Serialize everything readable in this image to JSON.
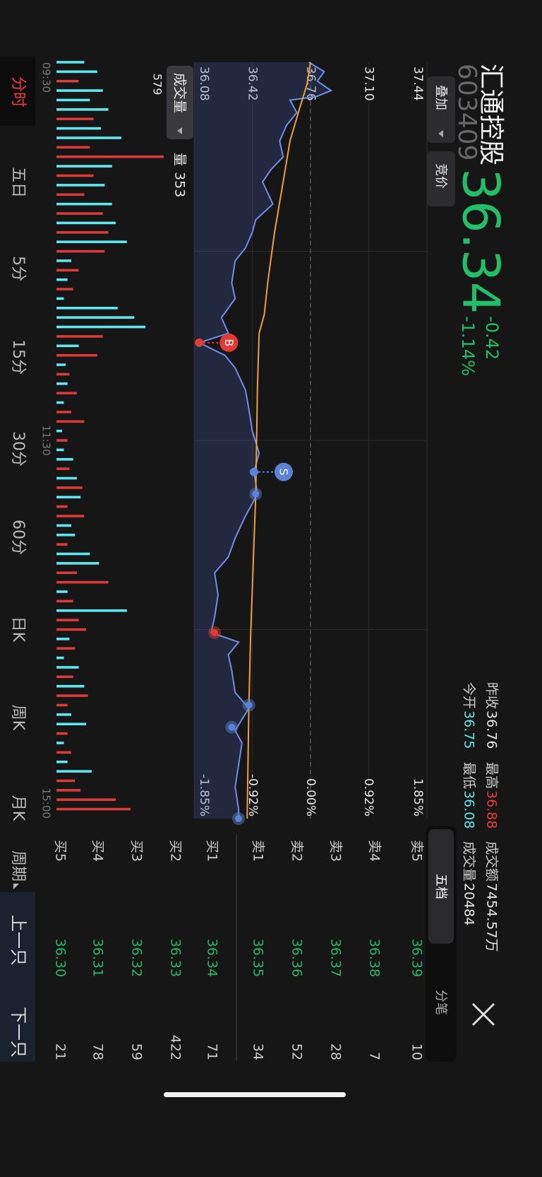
{
  "header": {
    "name": "汇通控股",
    "code": "603409",
    "price": 36.34,
    "change": -0.42,
    "change_pct": "-1.14%",
    "buttons": [
      "叠加",
      "竞价"
    ],
    "depth_tabs": [
      "五档",
      "分笔"
    ]
  },
  "stats": [
    [
      {
        "label": "昨收",
        "value": 36.76,
        "color": "#e8e8e8"
      },
      {
        "label": "最高",
        "value": 36.88,
        "color": "#f03b3b"
      },
      {
        "label": "成交额",
        "value": "7454.57万",
        "color": "#e8e8e8"
      }
    ],
    [
      {
        "label": "今开",
        "value": 36.75,
        "color": "#5ee7ee"
      },
      {
        "label": "最低",
        "value": 36.08,
        "color": "#5ee7ee"
      },
      {
        "label": "成交量",
        "value": 20484,
        "color": "#e8e8e8"
      }
    ]
  ],
  "chart_data": {
    "type": "line",
    "ylim": [
      36.08,
      37.44
    ],
    "yticks": [
      37.44,
      {
        "value": 37.1,
        "label": "37.10"
      },
      36.76,
      36.42,
      36.08
    ],
    "y2lim": [
      -1.85,
      1.85
    ],
    "y2ticks": [
      {
        "value": 1.85,
        "label": "1.85%"
      },
      {
        "value": 0.92,
        "label": "0.92%"
      },
      {
        "value": 0,
        "label": "0.00%"
      },
      {
        "value": -0.92,
        "label": "-0.92%"
      },
      {
        "value": -1.85,
        "label": "-1.85%"
      }
    ],
    "xlim": [
      0,
      240
    ],
    "xticks": [
      {
        "value": 0,
        "label": "09:30"
      },
      {
        "value": 120,
        "label": "11:30"
      },
      {
        "value": 240,
        "label": "15:00"
      }
    ],
    "x_gridlines": [
      60,
      120,
      180
    ],
    "series": [
      {
        "color": "#6f8fe8",
        "fill": "rgba(70,95,170,0.28)",
        "x": [
          0,
          3,
          6,
          9,
          11,
          12,
          16,
          20,
          25,
          30,
          34,
          38,
          45,
          50,
          54,
          59,
          63,
          70,
          75,
          81,
          86,
          89,
          93,
          97,
          104,
          110,
          117,
          124,
          130,
          137,
          144,
          151,
          157,
          162,
          169,
          176,
          181,
          184,
          188,
          193,
          200,
          205,
          212,
          216,
          223,
          230,
          237,
          240
        ],
        "values": [
          36.75,
          36.84,
          36.8,
          36.88,
          36.79,
          36.64,
          36.68,
          36.62,
          36.58,
          36.6,
          36.53,
          36.48,
          36.54,
          36.44,
          36.42,
          36.38,
          36.32,
          36.3,
          36.32,
          36.24,
          36.28,
          36.11,
          36.26,
          36.32,
          36.38,
          36.4,
          36.42,
          36.46,
          36.43,
          36.45,
          36.38,
          36.32,
          36.28,
          36.2,
          36.22,
          36.2,
          36.18,
          36.34,
          36.28,
          36.3,
          36.32,
          36.4,
          36.32,
          36.36,
          36.34,
          36.32,
          36.34,
          36.34
        ]
      },
      {
        "color": "#f0a030",
        "x": [
          0,
          7,
          14,
          25,
          38,
          54,
          70,
          80,
          86,
          103,
          137,
          182,
          205,
          240
        ],
        "values": [
          36.76,
          36.74,
          36.7,
          36.64,
          36.6,
          36.55,
          36.51,
          36.49,
          36.46,
          36.45,
          36.44,
          36.41,
          36.4,
          36.39
        ]
      }
    ],
    "trade_points": [
      {
        "label": "B",
        "x": 89,
        "price": 36.11,
        "color": "#e53935"
      },
      {
        "label": "S",
        "x": 130,
        "price": 36.43,
        "color": "#5b82d6"
      }
    ],
    "dots": [
      {
        "x": 137,
        "price": 36.44,
        "color": "#5b82d6"
      },
      {
        "x": 181,
        "price": 36.2,
        "color": "#e53935"
      },
      {
        "x": 204,
        "price": 36.4,
        "color": "#5b82d6"
      },
      {
        "x": 211,
        "price": 36.3,
        "color": "#5b82d6"
      },
      {
        "x": 240,
        "price": 36.34,
        "color": "#5b82d6"
      }
    ],
    "volume": {
      "label": "成交量",
      "readout_label": "量",
      "readout": 353,
      "ylim": [
        0,
        579
      ],
      "yticks": [
        579
      ],
      "x": [
        0,
        3,
        6,
        9,
        12,
        15,
        18,
        21,
        24,
        27,
        30,
        33,
        36,
        39,
        42,
        45,
        48,
        51,
        54,
        57,
        60,
        63,
        66,
        69,
        72,
        75,
        78,
        81,
        84,
        87,
        90,
        93,
        96,
        99,
        102,
        105,
        108,
        111,
        114,
        117,
        120,
        123,
        126,
        129,
        132,
        135,
        138,
        141,
        144,
        147,
        150,
        153,
        156,
        159,
        162,
        165,
        168,
        171,
        174,
        177,
        180,
        183,
        186,
        189,
        192,
        195,
        198,
        201,
        204,
        207,
        210,
        213,
        216,
        219,
        222,
        225,
        228,
        231,
        234,
        237
      ],
      "values": [
        150,
        220,
        120,
        250,
        180,
        280,
        200,
        240,
        350,
        180,
        579,
        300,
        200,
        260,
        150,
        300,
        250,
        320,
        280,
        380,
        260,
        80,
        120,
        60,
        90,
        40,
        330,
        420,
        480,
        250,
        120,
        220,
        50,
        70,
        60,
        110,
        40,
        80,
        150,
        30,
        60,
        40,
        90,
        70,
        110,
        140,
        130,
        60,
        150,
        80,
        100,
        60,
        180,
        230,
        110,
        280,
        60,
        90,
        380,
        120,
        160,
        70,
        100,
        40,
        120,
        90,
        150,
        170,
        60,
        80,
        160,
        60,
        40,
        80,
        60,
        190,
        100,
        130,
        320,
        400
      ],
      "colors": [
        "#5ee7ee",
        "#5ee7ee",
        "#d93a3a",
        "#5ee7ee",
        "#5ee7ee",
        "#5ee7ee",
        "#d93a3a",
        "#5ee7ee",
        "#5ee7ee",
        "#d93a3a",
        "#d93a3a",
        "#5ee7ee",
        "#d93a3a",
        "#5ee7ee",
        "#d93a3a",
        "#5ee7ee",
        "#d93a3a",
        "#5ee7ee",
        "#d93a3a",
        "#5ee7ee",
        "#d93a3a",
        "#5ee7ee",
        "#d93a3a",
        "#5ee7ee",
        "#d93a3a",
        "#5ee7ee",
        "#5ee7ee",
        "#5ee7ee",
        "#5ee7ee",
        "#d93a3a",
        "#5ee7ee",
        "#d93a3a",
        "#5ee7ee",
        "#d93a3a",
        "#5ee7ee",
        "#d93a3a",
        "#5ee7ee",
        "#d93a3a",
        "#d93a3a",
        "#5ee7ee",
        "#d93a3a",
        "#5ee7ee",
        "#5ee7ee",
        "#d93a3a",
        "#5ee7ee",
        "#d93a3a",
        "#5ee7ee",
        "#d93a3a",
        "#d93a3a",
        "#5ee7ee",
        "#5ee7ee",
        "#d93a3a",
        "#5ee7ee",
        "#5ee7ee",
        "#d93a3a",
        "#d93a3a",
        "#5ee7ee",
        "#d93a3a",
        "#5ee7ee",
        "#d93a3a",
        "#d93a3a",
        "#5ee7ee",
        "#d93a3a",
        "#5ee7ee",
        "#5ee7ee",
        "#d93a3a",
        "#5ee7ee",
        "#d93a3a",
        "#d93a3a",
        "#5ee7ee",
        "#5ee7ee",
        "#d93a3a",
        "#5ee7ee",
        "#d93a3a",
        "#5ee7ee",
        "#5ee7ee",
        "#d93a3a",
        "#d93a3a",
        "#d93a3a",
        "#d93a3a"
      ]
    }
  },
  "order_book": {
    "asks": [
      {
        "label": "卖5",
        "price": "36.39",
        "volume": 10
      },
      {
        "label": "卖4",
        "price": "36.38",
        "volume": 7
      },
      {
        "label": "卖3",
        "price": "36.37",
        "volume": 28
      },
      {
        "label": "卖2",
        "price": "36.36",
        "volume": 52
      },
      {
        "label": "卖1",
        "price": "36.35",
        "volume": 34
      }
    ],
    "bids": [
      {
        "label": "买1",
        "price": "36.34",
        "volume": 71
      },
      {
        "label": "买2",
        "price": "36.33",
        "volume": 422
      },
      {
        "label": "买3",
        "price": "36.32",
        "volume": 59
      },
      {
        "label": "买4",
        "price": "36.31",
        "volume": 78
      },
      {
        "label": "买5",
        "price": "36.30",
        "volume": 21
      }
    ]
  },
  "tabs": [
    "分时",
    "五日",
    "5分",
    "15分",
    "30分",
    "60分",
    "日K",
    "周K",
    "月K"
  ],
  "period": "周期",
  "nav": [
    "上一只",
    "下一只"
  ]
}
